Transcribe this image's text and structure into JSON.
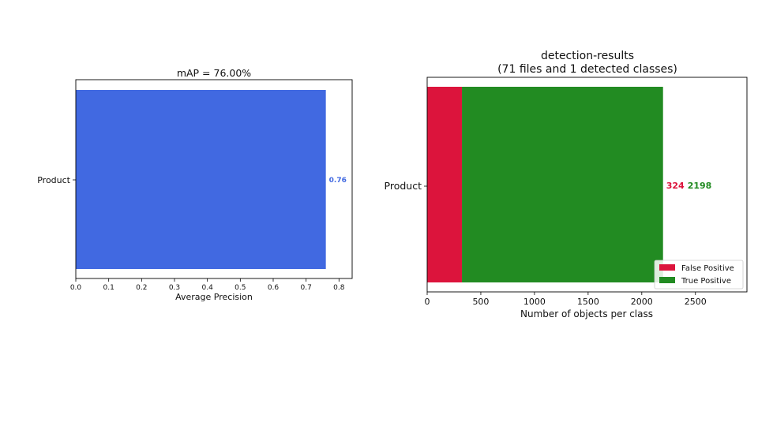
{
  "chart_data": [
    {
      "type": "bar",
      "orientation": "horizontal",
      "title": "mAP = 76.00%",
      "categories": [
        "Product"
      ],
      "values": [
        0.76
      ],
      "value_labels": [
        "0.76"
      ],
      "xlabel": "Average Precision",
      "ylabel": "",
      "xlim": [
        0,
        0.84
      ],
      "xticks": [
        "0.0",
        "0.1",
        "0.2",
        "0.3",
        "0.4",
        "0.5",
        "0.6",
        "0.7",
        "0.8"
      ],
      "grid": false,
      "colors": {
        "bar": "#4169e1",
        "label": "#4169e1"
      }
    },
    {
      "type": "bar",
      "orientation": "horizontal",
      "stacked": true,
      "title": "detection-results",
      "subtitle": "(71 files and 1 detected classes)",
      "categories": [
        "Product"
      ],
      "series": [
        {
          "name": "False Positive",
          "values": [
            324
          ],
          "color": "#dc143c"
        },
        {
          "name": "True Positive",
          "values": [
            2198
          ],
          "color": "#228b22"
        }
      ],
      "value_labels": [
        "324",
        "2198"
      ],
      "xlabel": "Number of objects per class",
      "ylabel": "",
      "xlim": [
        0,
        2980
      ],
      "xticks": [
        "0",
        "500",
        "1000",
        "1500",
        "2000",
        "2500"
      ],
      "grid": false,
      "legend": "bottom-right"
    }
  ]
}
